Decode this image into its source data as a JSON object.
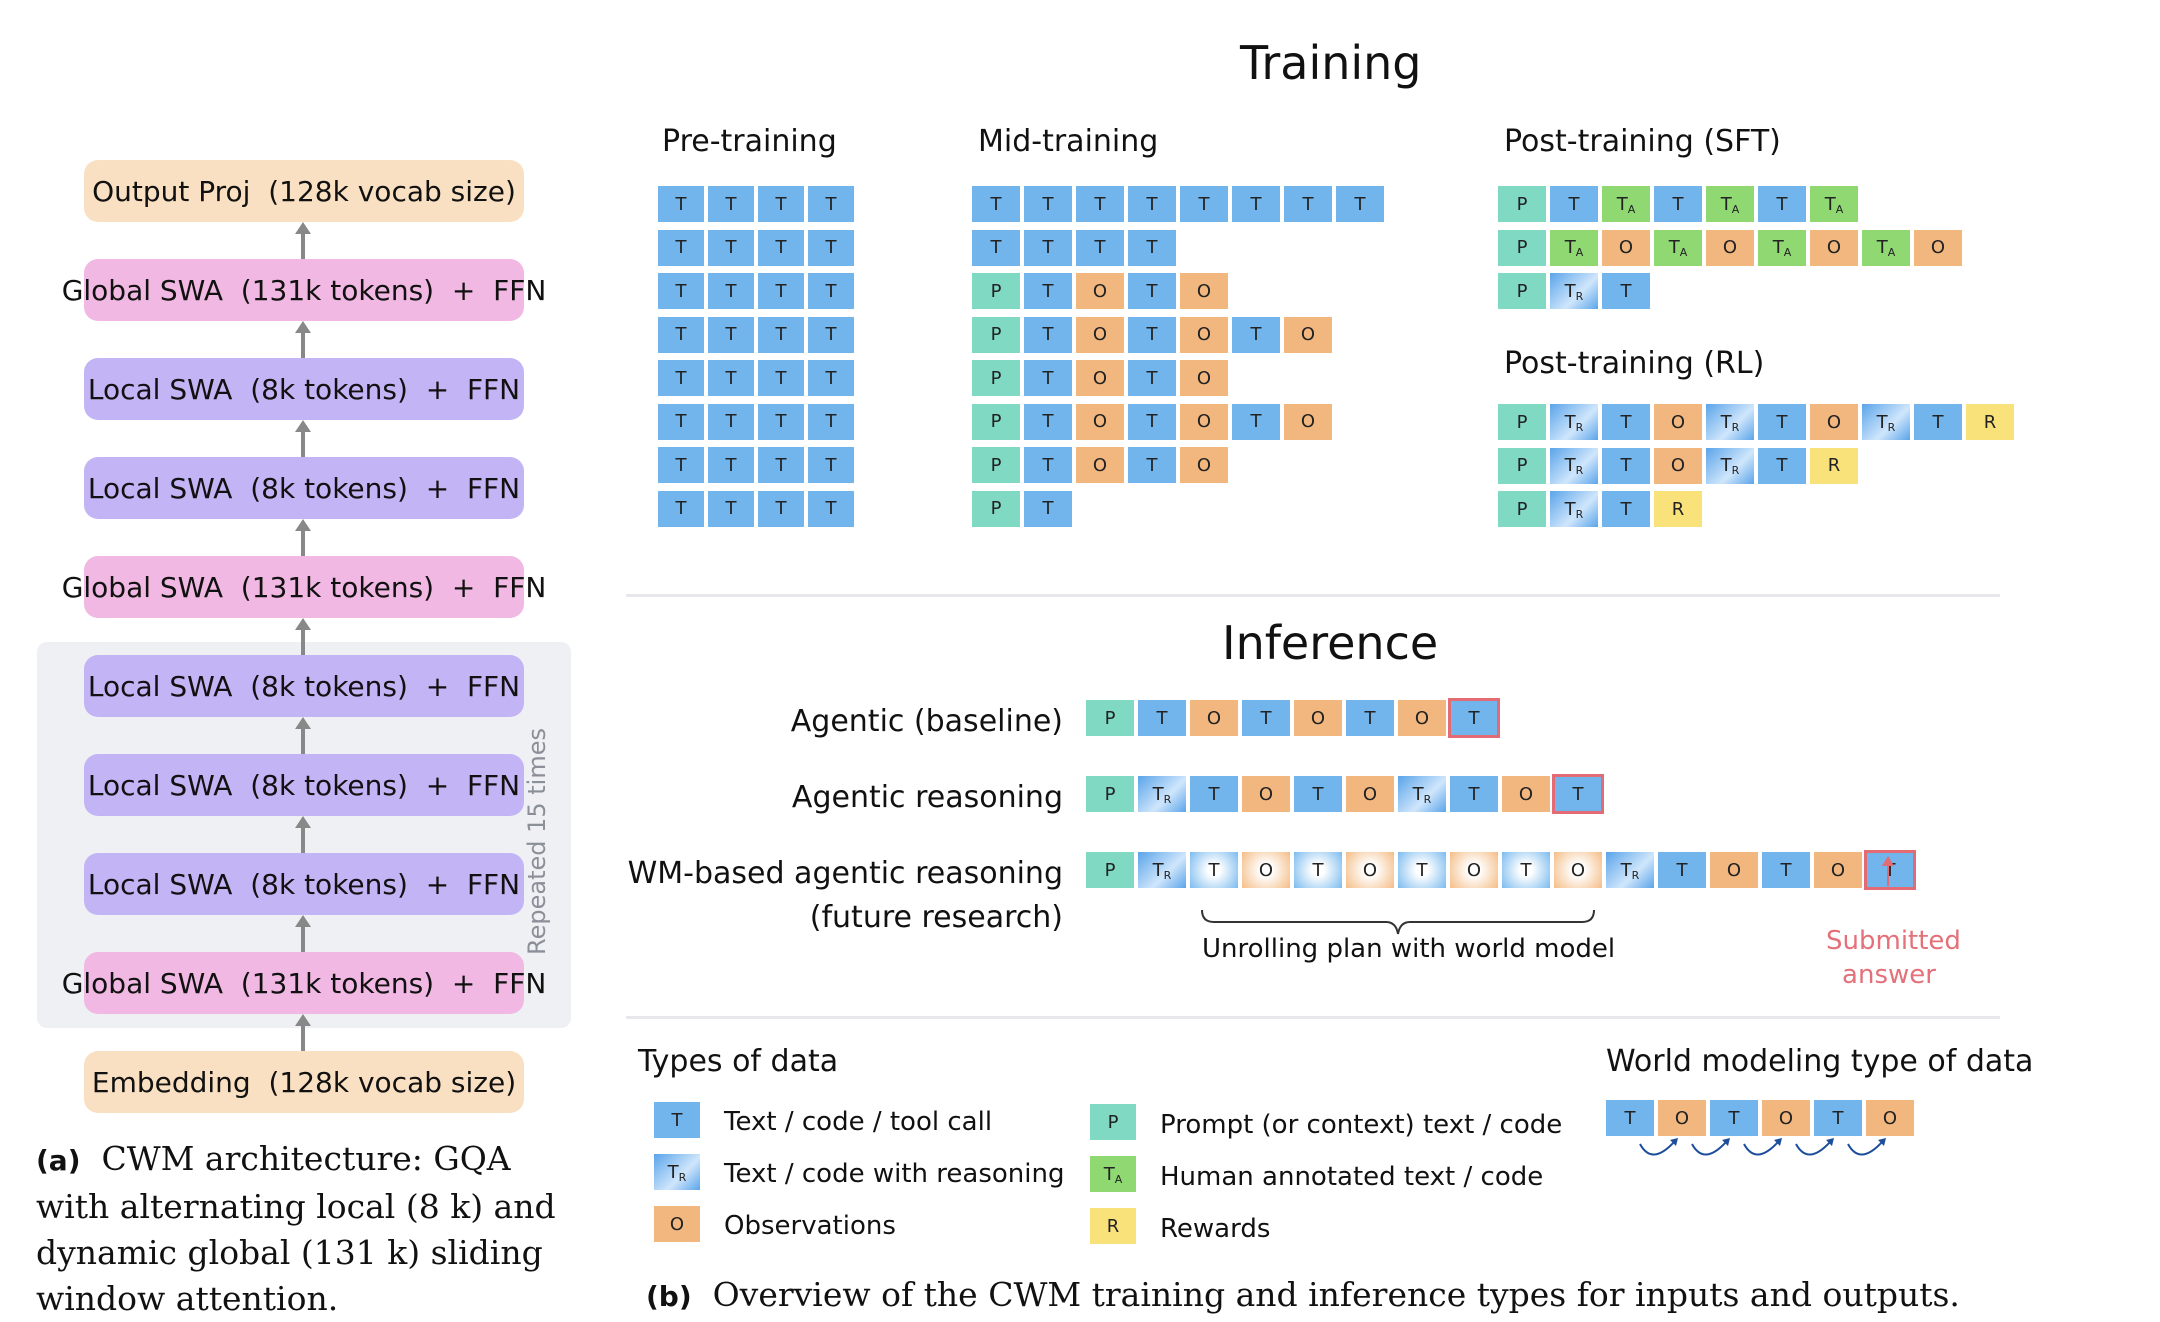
{
  "architecture": {
    "layers": [
      "Output Proj  (128k vocab size)",
      "Global SWA  (131k tokens)  +  FFN",
      "Local SWA  (8k tokens)  +  FFN",
      "Local SWA  (8k tokens)  +  FFN",
      "Global SWA  (131k tokens)  +  FFN",
      "Local SWA  (8k tokens)  +  FFN",
      "Local SWA  (8k tokens)  +  FFN",
      "Local SWA  (8k tokens)  +  FFN",
      "Global SWA  (131k tokens)  +  FFN",
      "Embedding  (128k vocab size)"
    ],
    "repeat_label": "Repeated 15 times",
    "caption_tag": "(a)",
    "caption_lines": [
      "CWM architecture: GQA",
      "with alternating local (8 k) and",
      "dynamic global (131 k) sliding",
      "window attention."
    ]
  },
  "training": {
    "title": "Training",
    "pretraining": {
      "title": "Pre-training"
    },
    "midtraining": {
      "title": "Mid-training"
    },
    "sft": {
      "title": "Post-training (SFT)"
    },
    "rl": {
      "title": "Post-training (RL)"
    }
  },
  "inference": {
    "title": "Inference",
    "baseline_label": "Agentic (baseline)",
    "reasoning_label": "Agentic reasoning",
    "wm_label_line1": "WM-based agentic reasoning",
    "wm_label_line2": "(future research)",
    "unroll_label": "Unrolling plan with world model",
    "submitted_line1": "Submitted",
    "submitted_line2": "answer"
  },
  "legend": {
    "title": "Types of data",
    "items": [
      "Text / code / tool call",
      "Text / code with reasoning",
      "Observations",
      "Prompt (or context)  text / code",
      "Human annotated text / code",
      "Rewards"
    ],
    "wm_title": "World modeling type of data"
  },
  "caption_b": {
    "tag": "(b)",
    "text": "Overview of the CWM training and inference types for inputs and outputs."
  },
  "token_letters": {
    "T": "T",
    "O": "O",
    "P": "P",
    "R": "R",
    "TR_sub": "R",
    "TA_sub": "A"
  },
  "colors": {
    "T": "#72b4ec",
    "O": "#f2b77e",
    "P": "#7fd9c3",
    "TA": "#8fd872",
    "R": "#f9e27a",
    "global": "#f0b8e2",
    "local": "#c3b4f6",
    "embed": "#fae0c2",
    "highlight": "#e36b73"
  }
}
